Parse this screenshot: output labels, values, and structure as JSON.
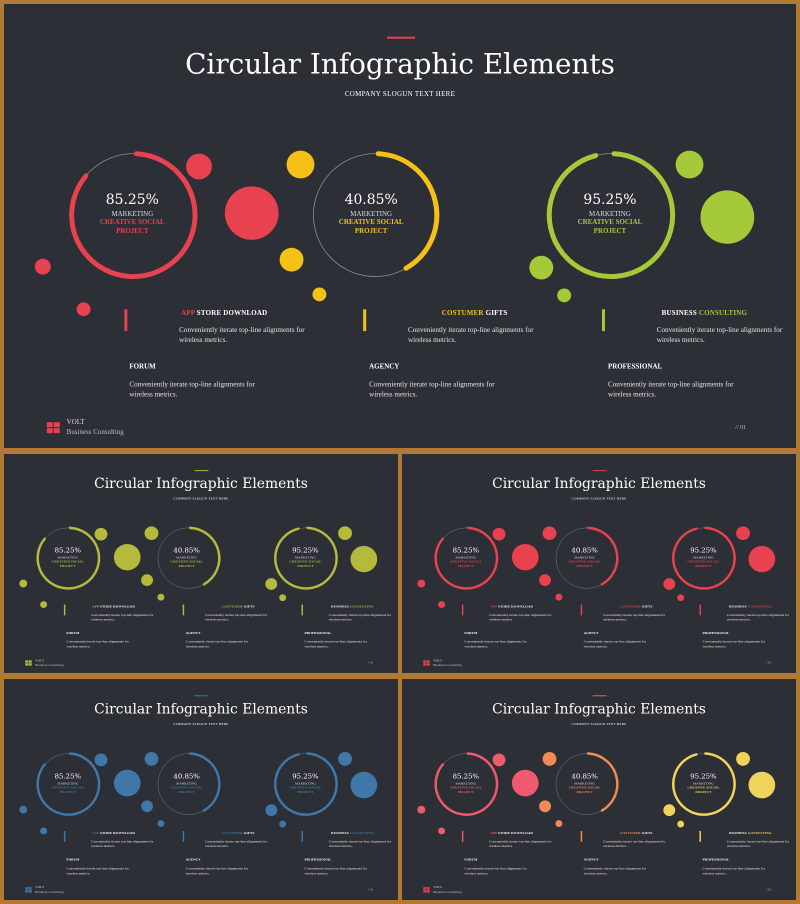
{
  "deck": {
    "title": "Circular Infographic Elements",
    "slogan": "COMPANY SLOGUN TEXT HERE",
    "logo_name": "VOLT",
    "logo_tagline": "Business Consulting",
    "page_number": "// 01"
  },
  "items": [
    {
      "percent": "85.25%",
      "label": "MARKETING",
      "project_line1": "CREATIVE SOCIAL",
      "project_line2": "PROJECT",
      "progress": 0.8525
    },
    {
      "percent": "40.85%",
      "label": "MARKETING",
      "project_line1": "CREATIVE SOCIAL",
      "project_line2": "PROJECT",
      "progress": 0.4085
    },
    {
      "percent": "95.25%",
      "label": "MARKETING",
      "project_line1": "CREATIVE SOCIAL",
      "project_line2": "PROJECT",
      "progress": 0.9525
    }
  ],
  "highlights": [
    {
      "title_accent": "APP",
      "title_rest": " STORE DOWNLOAD",
      "desc": "Conveniently iterate top-line alignments for wireless metrics."
    },
    {
      "title_accent": "COSTUMER",
      "title_rest": " GIFTS",
      "desc": "Conveniently iterate top-line alignments for wireless metrics."
    },
    {
      "title_plain": "BUSINESS ",
      "title_accent": "CONSULTING",
      "desc": "Conveniently iterate top-line alignments for wireless metrics."
    }
  ],
  "lower": [
    {
      "title": "FORUM",
      "desc": "Conveniently iterate top-line alignments for wireless metrics."
    },
    {
      "title": "AGENCY",
      "desc": "Conveniently iterate top-line alignments for wireless metrics."
    },
    {
      "title": "PROFESSIONAL",
      "desc": "Conveniently iterate top-line alignments for wireless metrics."
    }
  ],
  "colors": {
    "background": "#2c2f36",
    "frame": "#b07a35",
    "logo": "#e8414f"
  },
  "variants": [
    {
      "name": "main",
      "accents": [
        "#e8414f",
        "#f5c116",
        "#a6c93a"
      ]
    },
    {
      "name": "olive",
      "accents": [
        "#b5b93c",
        "#b5b93c",
        "#b5b93c"
      ]
    },
    {
      "name": "red",
      "accents": [
        "#e8414f",
        "#e8414f",
        "#e8414f"
      ]
    },
    {
      "name": "blue",
      "accents": [
        "#3f77a8",
        "#3f77a8",
        "#3f77a8"
      ]
    },
    {
      "name": "warm",
      "accents": [
        "#ef5a6e",
        "#f28a56",
        "#f0d35a"
      ]
    }
  ]
}
